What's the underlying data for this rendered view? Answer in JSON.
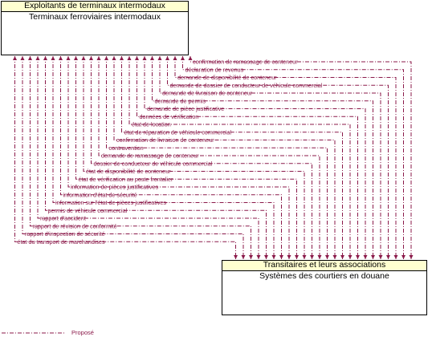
{
  "source": {
    "header": "Exploitants de terminaux intermodaux",
    "name": "Terminaux ferroviaires intermodaux"
  },
  "target": {
    "header": "Transitaires et leurs associations",
    "name": "Systèmes des courtiers en douane"
  },
  "flows": [
    "confirmation de ramassage de conteneur",
    "déclaration de revenus",
    "demande de disponibilité de conteneur",
    "demande de dossier de conducteur de véhicule commercial",
    "demande de livraison de conteneur",
    "demande de permis",
    "demande de pièce justificative",
    "données de vérification",
    "état de location",
    "état de réparation de véhicule commercial",
    "confirmation de livraison de conteneur",
    "contravention",
    "demande de ramassage de conteneur",
    "dossier de conducteur de véhicule commercial",
    "état de disponibilité de conteneur",
    "état de vérification au poste frontalier",
    "information de pièces justificatives",
    "information d'état de sécurité",
    "information sur l'état de pièces justificatives",
    "permis de véhicule commercial",
    "rapport d'accident",
    "rapport de révision de conformité",
    "rapport d'inspection de sécurité",
    "état du transport de marchandises"
  ],
  "legend": {
    "label": "Proposé",
    "color": "#8b1a4a"
  }
}
